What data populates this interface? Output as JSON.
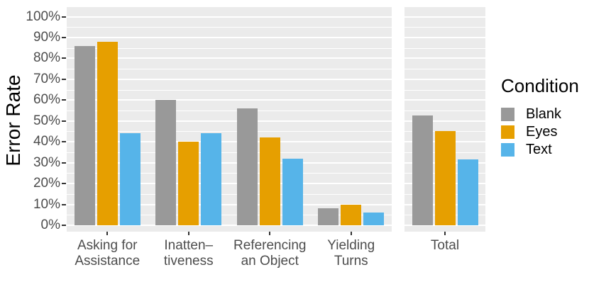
{
  "chart_data": {
    "type": "bar",
    "title": "",
    "xlabel": "",
    "ylabel": "Error Rate",
    "ylim": [
      0,
      100
    ],
    "y_tick_labels": [
      "0%",
      "10%",
      "20%",
      "30%",
      "40%",
      "50%",
      "60%",
      "70%",
      "80%",
      "90%",
      "100%"
    ],
    "grid": "white major gridlines every 10%, minor every 5%, on light gray panel",
    "panel_background": "#EBEBEB",
    "legend": {
      "title": "Condition",
      "position": "right",
      "items": [
        "Blank",
        "Eyes",
        "Text"
      ]
    },
    "colors": {
      "Blank": "#999999",
      "Eyes": "#E69F00",
      "Text": "#56B4E9"
    },
    "panels": [
      {
        "name": "categories",
        "categories": [
          "Asking for\nAssistance",
          "Inatten–\ntiveness",
          "Referencing\nan Object",
          "Yielding\nTurns"
        ],
        "series": [
          {
            "name": "Blank",
            "values": [
              86,
              60,
              56,
              8
            ]
          },
          {
            "name": "Eyes",
            "values": [
              88,
              40,
              42,
              10
            ]
          },
          {
            "name": "Text",
            "values": [
              44,
              44,
              32,
              6
            ]
          }
        ]
      },
      {
        "name": "total",
        "categories": [
          "Total"
        ],
        "series": [
          {
            "name": "Blank",
            "values": [
              52.5
            ]
          },
          {
            "name": "Eyes",
            "values": [
              45
            ]
          },
          {
            "name": "Text",
            "values": [
              31.5
            ]
          }
        ]
      }
    ]
  }
}
